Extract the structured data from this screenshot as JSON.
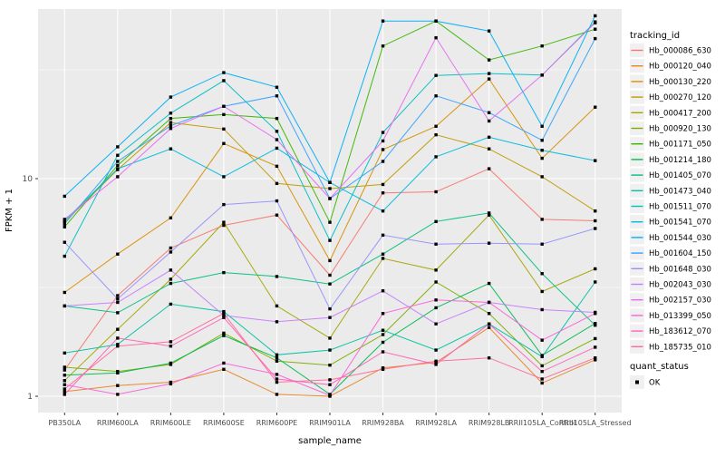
{
  "chart_data": {
    "type": "line",
    "title": "",
    "xlabel": "sample_name",
    "ylabel": "FPKM + 1",
    "y_scale": "log10",
    "y_tick_labels": [
      "10",
      "1"
    ],
    "y_ticks": [
      10,
      1
    ],
    "y_minor_ticks": [
      3.162,
      31.62
    ],
    "ylim": [
      0.9,
      62
    ],
    "grid": "on",
    "panel_bg": "#EBEBEB",
    "gridline_color": "#FFFFFF",
    "point_color": "#000000",
    "x_categories": [
      "PB350LA",
      "RRIM600LA",
      "RRIM600LE",
      "RRIM600SE",
      "RRIM600PE",
      "RRIM901LA",
      "RRIM928BA",
      "RRIM928LA",
      "RRIM928LB",
      "RRII105LA_Control",
      "RRII105LA_Stressed"
    ],
    "series": [
      {
        "name": "Hb_000086_630",
        "color": "#F8766D",
        "values": [
          1.32,
          2.9,
          4.8,
          6.1,
          6.8,
          3.6,
          8.6,
          8.7,
          11.1,
          6.5,
          6.4
        ]
      },
      {
        "name": "Hb_000120_040",
        "color": "#E88526",
        "values": [
          1.05,
          1.12,
          1.16,
          1.33,
          1.02,
          1.0,
          1.35,
          1.43,
          2.07,
          1.15,
          1.47
        ]
      },
      {
        "name": "Hb_000130_220",
        "color": "#D89000",
        "values": [
          3.0,
          4.5,
          6.6,
          14.5,
          11.4,
          4.2,
          13.6,
          17.4,
          28.7,
          12.4,
          21.3
        ]
      },
      {
        "name": "Hb_000270_120",
        "color": "#C09B00",
        "values": [
          6.3,
          11.0,
          18.1,
          16.9,
          9.5,
          9.0,
          9.4,
          15.9,
          13.7,
          10.2,
          7.1
        ]
      },
      {
        "name": "Hb_000417_200",
        "color": "#A3A500",
        "values": [
          1.18,
          2.03,
          3.45,
          6.3,
          2.6,
          1.85,
          4.3,
          3.8,
          6.8,
          3.03,
          3.85
        ]
      },
      {
        "name": "Hb_000920_130",
        "color": "#7CAE00",
        "values": [
          1.36,
          1.3,
          1.4,
          1.95,
          1.45,
          1.39,
          1.92,
          3.35,
          2.4,
          1.38,
          1.84
        ]
      },
      {
        "name": "Hb_001171_050",
        "color": "#39B600",
        "values": [
          6.0,
          11.5,
          18.9,
          19.7,
          18.9,
          6.3,
          40.7,
          53.0,
          35.1,
          40.7,
          48.6
        ]
      },
      {
        "name": "Hb_001214_180",
        "color": "#00BB4E",
        "values": [
          1.25,
          1.28,
          1.42,
          1.9,
          1.5,
          1.02,
          1.77,
          2.55,
          3.3,
          1.54,
          2.16
        ]
      },
      {
        "name": "Hb_001405_070",
        "color": "#00BF7D",
        "values": [
          2.6,
          2.42,
          3.3,
          3.7,
          3.55,
          3.28,
          4.5,
          6.35,
          6.95,
          3.66,
          2.12
        ]
      },
      {
        "name": "Hb_001473_040",
        "color": "#00C1A3",
        "values": [
          1.58,
          1.73,
          2.65,
          2.45,
          1.55,
          1.63,
          2.01,
          1.63,
          2.15,
          1.52,
          3.35
        ]
      },
      {
        "name": "Hb_001511_070",
        "color": "#00BFC4",
        "values": [
          4.4,
          12.8,
          20.0,
          28.2,
          16.5,
          5.2,
          16.3,
          29.8,
          30.4,
          29.9,
          52.5
        ]
      },
      {
        "name": "Hb_001541_070",
        "color": "#00BAE0",
        "values": [
          6.4,
          11.1,
          13.7,
          10.2,
          13.8,
          9.6,
          7.1,
          12.6,
          15.5,
          13.5,
          12.1
        ]
      },
      {
        "name": "Hb_001544_030",
        "color": "#00B0F6",
        "values": [
          8.3,
          14.0,
          23.7,
          30.7,
          26.3,
          9.6,
          53.0,
          53.0,
          47.7,
          17.4,
          56.0
        ]
      },
      {
        "name": "Hb_001604_150",
        "color": "#35A2FF",
        "values": [
          6.2,
          12.0,
          17.5,
          21.5,
          24.0,
          8.1,
          12.0,
          24.0,
          20.1,
          15.0,
          44.0
        ]
      },
      {
        "name": "Hb_001648_030",
        "color": "#9590FF",
        "values": [
          5.1,
          2.8,
          4.6,
          7.6,
          7.9,
          2.52,
          5.5,
          5.0,
          5.05,
          5.0,
          5.9
        ]
      },
      {
        "name": "Hb_002043_030",
        "color": "#C77CFF",
        "values": [
          2.6,
          2.7,
          3.8,
          2.35,
          2.2,
          2.3,
          3.05,
          2.15,
          2.7,
          2.5,
          2.43
        ]
      },
      {
        "name": "Hb_002157_030",
        "color": "#E76BF3",
        "values": [
          6.5,
          10.2,
          17.0,
          21.5,
          15.1,
          8.1,
          14.9,
          44.4,
          18.4,
          29.9,
          52.0
        ]
      },
      {
        "name": "Hb_013399_050",
        "color": "#FA62DB",
        "values": [
          1.13,
          1.02,
          1.14,
          1.42,
          1.26,
          1.01,
          2.4,
          2.77,
          2.7,
          1.81,
          2.4
        ]
      },
      {
        "name": "Hb_183612_070",
        "color": "#FF62BC",
        "values": [
          1.02,
          1.85,
          1.7,
          2.3,
          1.2,
          1.13,
          1.6,
          1.4,
          2.15,
          1.3,
          1.68
        ]
      },
      {
        "name": "Hb_185735_010",
        "color": "#FF6A98",
        "values": [
          1.08,
          1.7,
          1.78,
          2.4,
          1.16,
          1.19,
          1.33,
          1.45,
          1.5,
          1.2,
          1.5
        ]
      }
    ],
    "legend_position": "right"
  },
  "legend": {
    "tracking_title": "tracking_id",
    "quant_title": "quant_status",
    "quant_items": [
      {
        "label": "OK",
        "marker": "black-square"
      }
    ]
  }
}
